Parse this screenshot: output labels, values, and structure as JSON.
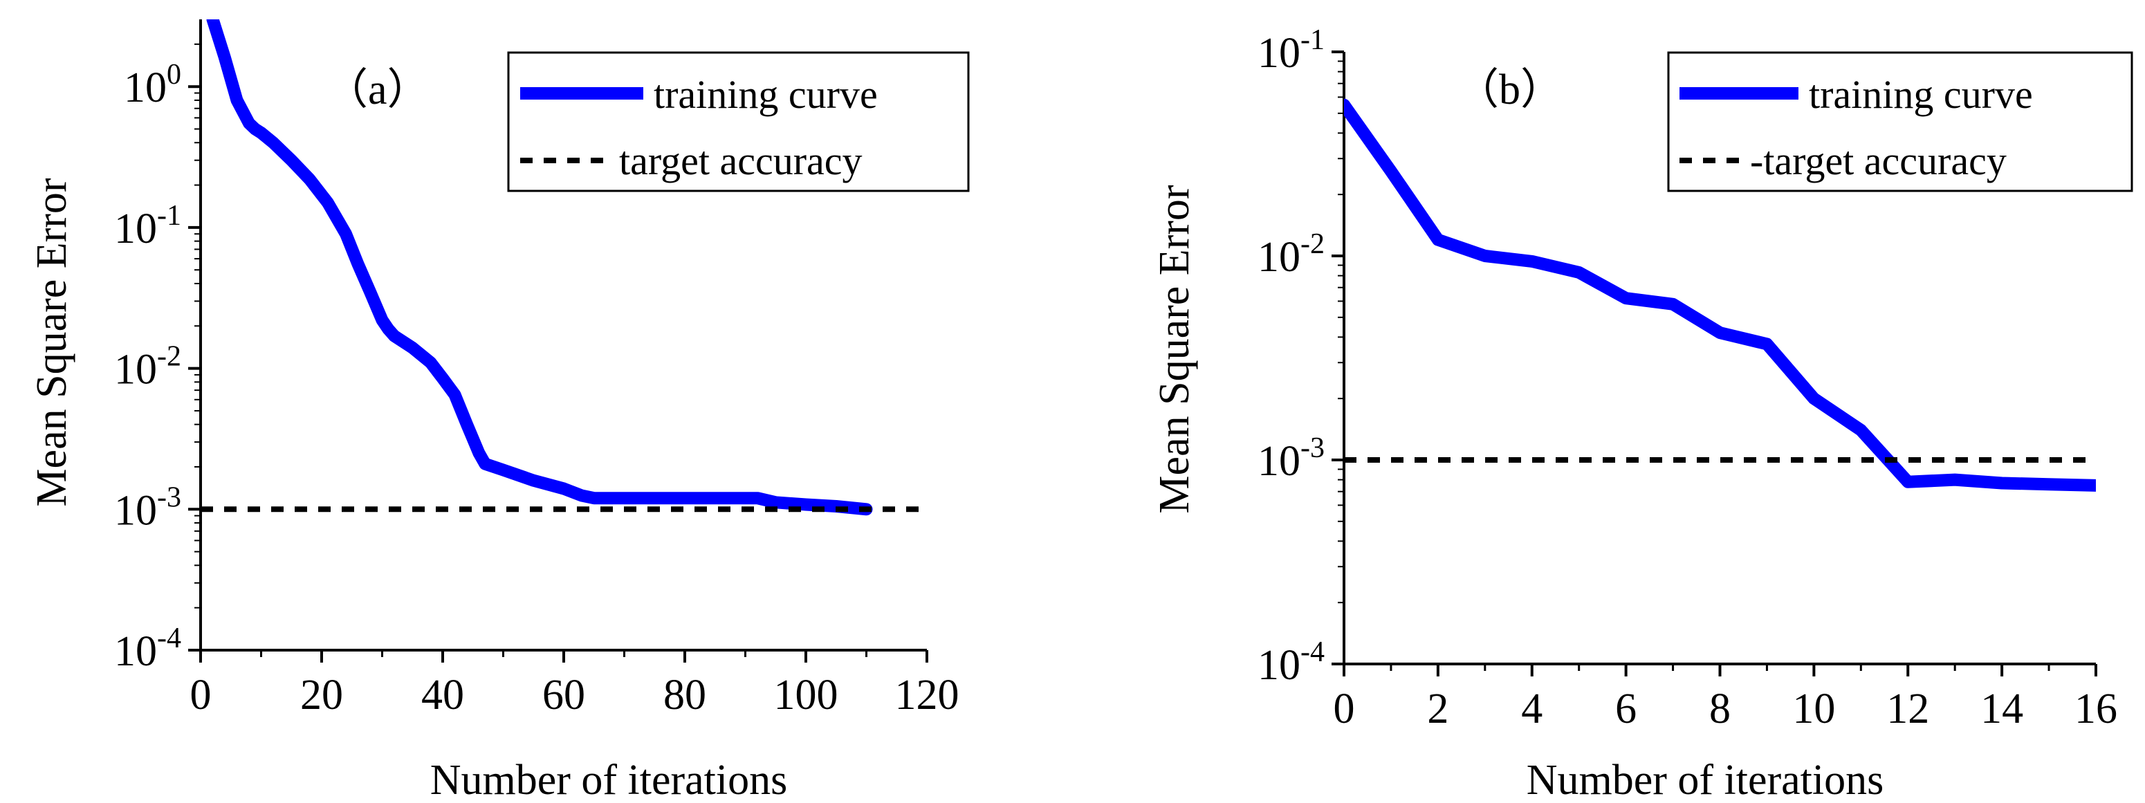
{
  "chart_data": [
    {
      "type": "line",
      "panel_label": "（a）",
      "xlabel": "Number of iterations",
      "ylabel": "Mean Square Error",
      "yscale": "log",
      "xlim": [
        0,
        120
      ],
      "ylim": [
        0.0001,
        3
      ],
      "xticks": [
        0,
        20,
        40,
        60,
        80,
        100,
        120
      ],
      "xtick_labels": [
        "0",
        "20",
        "40",
        "60",
        "80",
        "100",
        "120"
      ],
      "yticks": [
        {
          "value": 1,
          "base": "10",
          "exp": "0"
        },
        {
          "value": 0.1,
          "base": "10",
          "exp": "-1"
        },
        {
          "value": 0.01,
          "base": "10",
          "exp": "-2"
        },
        {
          "value": 0.001,
          "base": "10",
          "exp": "-3"
        },
        {
          "value": 0.0001,
          "base": "10",
          "exp": "-4"
        }
      ],
      "legend_position": "top-right",
      "series": [
        {
          "name": "training curve",
          "color": "#0000ff",
          "style": "solid",
          "x": [
            2,
            4,
            6,
            8,
            9,
            10,
            12,
            15,
            18,
            21,
            24,
            26,
            28,
            30,
            31,
            32,
            35,
            38,
            40,
            42,
            44,
            46,
            47,
            50,
            55,
            60,
            63,
            65,
            70,
            80,
            85,
            92,
            95,
            100,
            105,
            110
          ],
          "y": [
            3.0,
            1.6,
            0.8,
            0.55,
            0.5,
            0.47,
            0.4,
            0.3,
            0.22,
            0.15,
            0.09,
            0.055,
            0.035,
            0.022,
            0.019,
            0.017,
            0.014,
            0.011,
            0.0085,
            0.0065,
            0.004,
            0.0025,
            0.0021,
            0.0019,
            0.0016,
            0.0014,
            0.00125,
            0.0012,
            0.0012,
            0.0012,
            0.0012,
            0.0012,
            0.00112,
            0.00108,
            0.00105,
            0.001
          ]
        },
        {
          "name": "target accuracy",
          "color": "#000000",
          "style": "dashed",
          "x": [
            0,
            120
          ],
          "y": [
            0.001,
            0.001
          ]
        }
      ]
    },
    {
      "type": "line",
      "panel_label": "（b）",
      "xlabel": "Number of iterations",
      "ylabel": "Mean Square Error",
      "yscale": "log",
      "xlim": [
        0,
        16
      ],
      "ylim": [
        0.0001,
        0.1
      ],
      "xticks": [
        0,
        2,
        4,
        6,
        8,
        10,
        12,
        14,
        16
      ],
      "xtick_labels": [
        "0",
        "2",
        "4",
        "6",
        "8",
        "10",
        "12",
        "14",
        "16"
      ],
      "yticks": [
        {
          "value": 0.1,
          "base": "10",
          "exp": "-1"
        },
        {
          "value": 0.01,
          "base": "10",
          "exp": "-2"
        },
        {
          "value": 0.001,
          "base": "10",
          "exp": "-3"
        },
        {
          "value": 0.0001,
          "base": "10",
          "exp": "-4"
        }
      ],
      "legend_position": "top-right",
      "series": [
        {
          "name": "training curve",
          "color": "#0000ff",
          "style": "solid",
          "x": [
            0,
            1,
            2,
            3,
            4,
            5,
            6,
            7,
            8,
            9,
            10,
            11,
            12,
            13,
            14,
            15,
            16
          ],
          "y": [
            0.055,
            0.026,
            0.012,
            0.01,
            0.0094,
            0.0083,
            0.0062,
            0.0058,
            0.0042,
            0.0037,
            0.002,
            0.0014,
            0.00078,
            0.0008,
            0.00077,
            0.00076,
            0.00075
          ]
        },
        {
          "name": "target accuracy",
          "color": "#000000",
          "style": "dashed",
          "x": [
            0,
            16
          ],
          "y": [
            0.001,
            0.001
          ]
        }
      ],
      "legend_labels": [
        "training curve",
        "-target accuracy"
      ]
    }
  ],
  "legend_a": [
    "training curve",
    "target accuracy"
  ],
  "legend_b": [
    "training curve",
    "-target accuracy"
  ]
}
